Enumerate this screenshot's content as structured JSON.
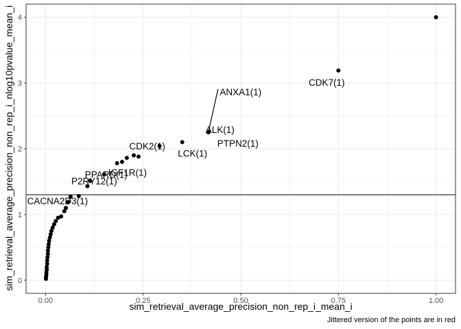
{
  "chart_data": {
    "type": "scatter",
    "xlabel": "sim_retrieval_average_precision_non_rep_i_mean_i",
    "ylabel": "sim_retrieval_average_precision_non_rep_i_nlog10pvalue_mean_i",
    "caption": "Jittered version of the points are in red",
    "xlim": [
      -0.05,
      1.05
    ],
    "ylim": [
      -0.2,
      4.2
    ],
    "x_ticks": [
      0.0,
      0.25,
      0.5,
      0.75,
      1.0
    ],
    "x_tick_labels": [
      "0.00",
      "0.25",
      "0.50",
      "0.75",
      "1.00"
    ],
    "y_ticks": [
      0,
      1,
      2,
      3,
      4
    ],
    "y_tick_labels": [
      "0",
      "1",
      "2",
      "3",
      "4"
    ],
    "grid": true,
    "hline": 1.3,
    "point_color": "#000000",
    "points": [
      {
        "x": 0.001,
        "y": 0.02
      },
      {
        "x": 0.001,
        "y": 0.05
      },
      {
        "x": 0.002,
        "y": 0.08
      },
      {
        "x": 0.002,
        "y": 0.12
      },
      {
        "x": 0.003,
        "y": 0.16
      },
      {
        "x": 0.003,
        "y": 0.2
      },
      {
        "x": 0.004,
        "y": 0.25
      },
      {
        "x": 0.004,
        "y": 0.3
      },
      {
        "x": 0.005,
        "y": 0.35
      },
      {
        "x": 0.006,
        "y": 0.4
      },
      {
        "x": 0.006,
        "y": 0.45
      },
      {
        "x": 0.007,
        "y": 0.5
      },
      {
        "x": 0.008,
        "y": 0.55
      },
      {
        "x": 0.009,
        "y": 0.6
      },
      {
        "x": 0.011,
        "y": 0.65
      },
      {
        "x": 0.013,
        "y": 0.7
      },
      {
        "x": 0.015,
        "y": 0.75
      },
      {
        "x": 0.018,
        "y": 0.8
      },
      {
        "x": 0.022,
        "y": 0.85
      },
      {
        "x": 0.026,
        "y": 0.9
      },
      {
        "x": 0.032,
        "y": 0.95
      },
      {
        "x": 0.04,
        "y": 0.97
      },
      {
        "x": 0.048,
        "y": 1.05
      },
      {
        "x": 0.052,
        "y": 1.1
      },
      {
        "x": 0.058,
        "y": 1.19
      },
      {
        "x": 0.064,
        "y": 1.27
      },
      {
        "x": 0.085,
        "y": 1.28
      },
      {
        "x": 0.107,
        "y": 1.43
      },
      {
        "x": 0.114,
        "y": 1.51
      },
      {
        "x": 0.15,
        "y": 1.61
      },
      {
        "x": 0.183,
        "y": 1.78
      },
      {
        "x": 0.196,
        "y": 1.8
      },
      {
        "x": 0.208,
        "y": 1.86
      },
      {
        "x": 0.226,
        "y": 1.9
      },
      {
        "x": 0.238,
        "y": 1.88
      },
      {
        "x": 0.292,
        "y": 2.04
      },
      {
        "x": 0.35,
        "y": 2.1
      },
      {
        "x": 0.417,
        "y": 2.25
      },
      {
        "x": 0.75,
        "y": 3.19
      },
      {
        "x": 1.0,
        "y": 4.0
      }
    ],
    "annotations": [
      {
        "text": "CDK7(1)",
        "x": 0.75,
        "y": 3.19
      },
      {
        "text": "ANXA1(1)",
        "x": 0.417,
        "y": 2.25
      },
      {
        "text": "ALK(1)",
        "x": 0.417,
        "y": 2.25
      },
      {
        "text": "PTPN2(1)",
        "x": 0.417,
        "y": 2.25
      },
      {
        "text": "LCK(1)",
        "x": 0.35,
        "y": 2.1
      },
      {
        "text": "CDK2(1)",
        "x": 0.292,
        "y": 2.04
      },
      {
        "text": "IGF1R(1)",
        "x": 0.238,
        "y": 1.88
      },
      {
        "text": "PPARD(1)",
        "x": 0.15,
        "y": 1.61
      },
      {
        "text": "P2RY12(1)",
        "x": 0.114,
        "y": 1.51
      },
      {
        "text": "CACNA2D3(1)",
        "x": 0.064,
        "y": 1.27
      }
    ]
  }
}
